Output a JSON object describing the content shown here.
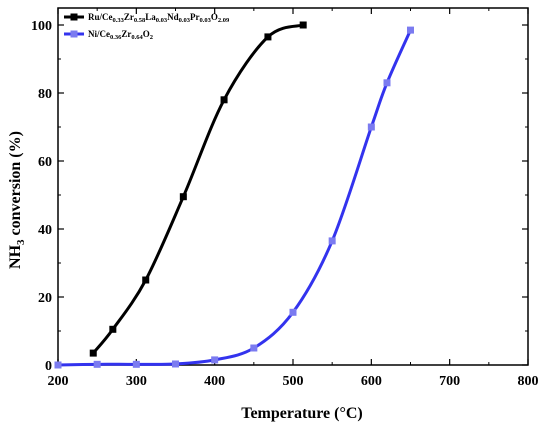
{
  "chart_data": {
    "type": "line",
    "xlabel": "Temperature (°C)",
    "ylabel_main": "NH",
    "ylabel_sub": "3",
    "ylabel_rest": " conversion (%)",
    "xlim": [
      200,
      800
    ],
    "ylim": [
      0,
      105
    ],
    "xticks": [
      200,
      300,
      400,
      500,
      600,
      700,
      800
    ],
    "yticks": [
      0,
      20,
      40,
      60,
      80,
      100
    ],
    "grid": false,
    "legend_position": "top-left",
    "series": [
      {
        "name": "Ru/Ce0.33Zr0.58La0.03Nd0.03Pr0.03O2.09",
        "name_parts": [
          {
            "t": "Ru/Ce",
            "s": false
          },
          {
            "t": "0.33",
            "s": true
          },
          {
            "t": "Zr",
            "s": false
          },
          {
            "t": "0.58",
            "s": true
          },
          {
            "t": "La",
            "s": false
          },
          {
            "t": "0.03",
            "s": true
          },
          {
            "t": "Nd",
            "s": false
          },
          {
            "t": "0.03",
            "s": true
          },
          {
            "t": "Pr",
            "s": false
          },
          {
            "t": "0.03",
            "s": true
          },
          {
            "t": "O",
            "s": false
          },
          {
            "t": "2.09",
            "s": true
          }
        ],
        "color": "#000000",
        "x": [
          245,
          270,
          312,
          360,
          412,
          468,
          513
        ],
        "y": [
          3.5,
          10.5,
          25,
          49.5,
          78,
          96.5,
          100
        ]
      },
      {
        "name": "Ni/Ce0.36Zr0.64O2",
        "name_parts": [
          {
            "t": "Ni/Ce",
            "s": false
          },
          {
            "t": "0.36",
            "s": true
          },
          {
            "t": "Zr",
            "s": false
          },
          {
            "t": "0.64",
            "s": true
          },
          {
            "t": "O",
            "s": false
          },
          {
            "t": "2",
            "s": true
          }
        ],
        "color": "#3333ee",
        "marker_color": "#7b7bf0",
        "x": [
          200,
          250,
          300,
          350,
          400,
          450,
          500,
          550,
          600,
          620,
          650
        ],
        "y": [
          0,
          0.2,
          0.2,
          0.3,
          1.5,
          5,
          15.5,
          36.5,
          70,
          83,
          98.5
        ]
      }
    ]
  }
}
